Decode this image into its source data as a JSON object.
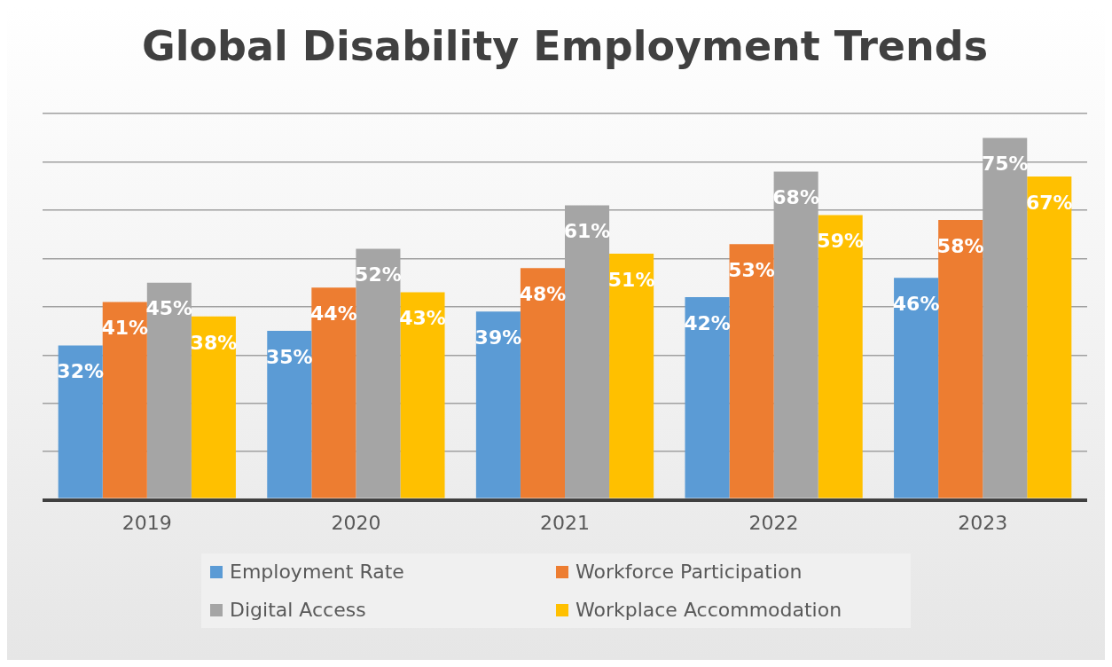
{
  "chart_data": {
    "type": "bar",
    "title": "Global Disability Employment Trends",
    "categories": [
      "2019",
      "2020",
      "2021",
      "2022",
      "2023"
    ],
    "series": [
      {
        "name": "Employment Rate",
        "color": "#5b9bd5",
        "values": [
          32,
          35,
          39,
          42,
          46
        ],
        "value_labels": [
          "32%",
          "35%",
          "39%",
          "42%",
          "46%"
        ]
      },
      {
        "name": "Workforce Participation",
        "color": "#ed7d31",
        "values": [
          41,
          44,
          48,
          53,
          58
        ],
        "value_labels": [
          "41%",
          "44%",
          "48%",
          "53%",
          "58%"
        ]
      },
      {
        "name": "Digital Access",
        "color": "#a5a5a5",
        "values": [
          45,
          52,
          61,
          68,
          75
        ],
        "value_labels": [
          "45%",
          "52%",
          "61%",
          "68%",
          "75%"
        ]
      },
      {
        "name": "Workplace Accommodation",
        "color": "#ffc000",
        "values": [
          38,
          43,
          51,
          59,
          67
        ],
        "value_labels": [
          "38%",
          "43%",
          "51%",
          "59%",
          "67%"
        ]
      }
    ],
    "tick_labels": "x",
    "grid": "y",
    "legend": "bottom"
  }
}
